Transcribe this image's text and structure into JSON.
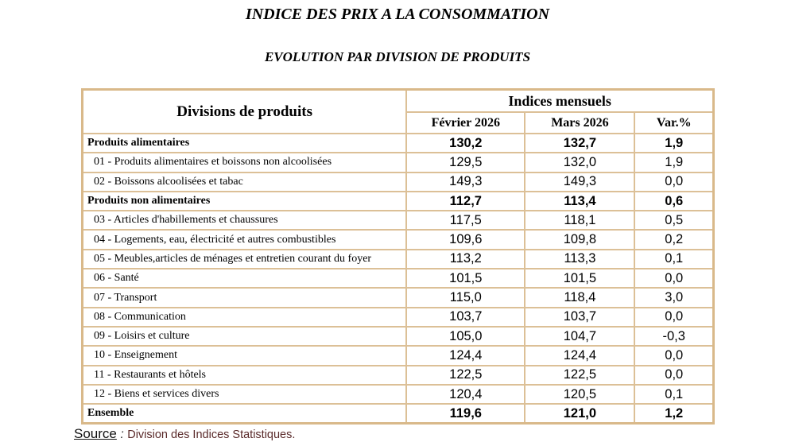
{
  "title": "INDICE DES PRIX A LA CONSOMMATION",
  "subtitle": "EVOLUTION PAR DIVISION DE PRODUITS",
  "table": {
    "header": {
      "divisions": "Divisions de produits",
      "group": "Indices mensuels",
      "columns": [
        "Février 2026",
        "Mars 2026",
        "Var.%"
      ]
    },
    "rows": [
      {
        "label": "Produits alimentaires",
        "bold": true,
        "feb": "130,2",
        "mar": "132,7",
        "var": "1,9"
      },
      {
        "label": "01 - Produits alimentaires et boissons non alcoolisées",
        "bold": false,
        "feb": "129,5",
        "mar": "132,0",
        "var": "1,9"
      },
      {
        "label": "02 - Boissons alcoolisées et tabac",
        "bold": false,
        "feb": "149,3",
        "mar": "149,3",
        "var": "0,0"
      },
      {
        "label": "Produits non alimentaires",
        "bold": true,
        "feb": "112,7",
        "mar": "113,4",
        "var": "0,6"
      },
      {
        "label": "03 - Articles d'habillements et chaussures",
        "bold": false,
        "feb": "117,5",
        "mar": "118,1",
        "var": "0,5"
      },
      {
        "label": "04 - Logements, eau, électricité et autres combustibles",
        "bold": false,
        "feb": "109,6",
        "mar": "109,8",
        "var": "0,2"
      },
      {
        "label": "05 - Meubles,articles de ménages et entretien courant du foyer",
        "bold": false,
        "feb": "113,2",
        "mar": "113,3",
        "var": "0,1"
      },
      {
        "label": "06 - Santé",
        "bold": false,
        "feb": "101,5",
        "mar": "101,5",
        "var": "0,0"
      },
      {
        "label": "07 - Transport",
        "bold": false,
        "feb": "115,0",
        "mar": "118,4",
        "var": "3,0"
      },
      {
        "label": "08 - Communication",
        "bold": false,
        "feb": "103,7",
        "mar": "103,7",
        "var": "0,0"
      },
      {
        "label": "09 - Loisirs et culture",
        "bold": false,
        "feb": "105,0",
        "mar": "104,7",
        "var": "-0,3"
      },
      {
        "label": "10 - Enseignement",
        "bold": false,
        "feb": "124,4",
        "mar": "124,4",
        "var": "0,0"
      },
      {
        "label": "11 - Restaurants et hôtels",
        "bold": false,
        "feb": "122,5",
        "mar": "122,5",
        "var": "0,0"
      },
      {
        "label": "12 - Biens et services divers",
        "bold": false,
        "feb": "120,4",
        "mar": "120,5",
        "var": "0,1"
      },
      {
        "label": "Ensemble",
        "bold": true,
        "feb": "119,6",
        "mar": "121,0",
        "var": "1,2"
      }
    ]
  },
  "source": {
    "label": "Source",
    "separator": ":",
    "value": "Division des Indices Statistiques."
  },
  "colors": {
    "border": "#d9b98a",
    "source_text": "#5a2a2a"
  }
}
